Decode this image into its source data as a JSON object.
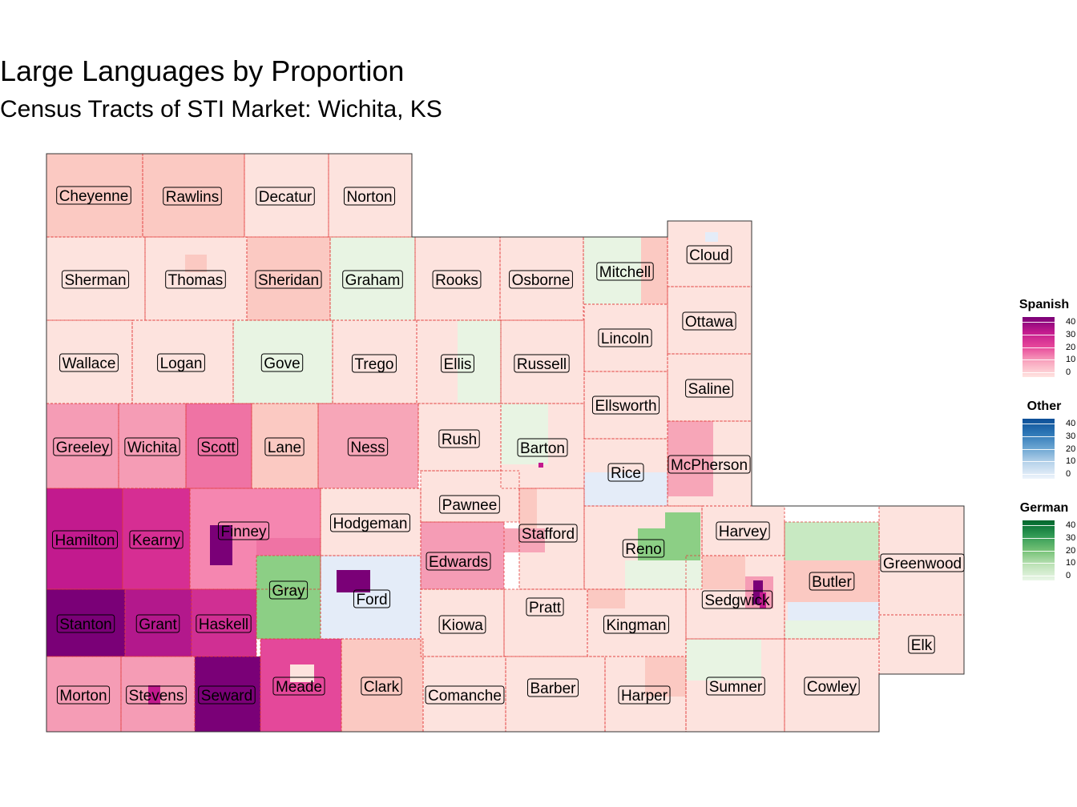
{
  "title": "Large Languages by Proportion",
  "subtitle": "Census Tracts of STI Market: Wichita, KS",
  "legend": [
    {
      "title": "Spanish",
      "ticks": [
        "40",
        "30",
        "20",
        "10",
        "0"
      ],
      "colors": [
        "#ffe4e0",
        "#f9a8c0",
        "#e7489a",
        "#c21a8e",
        "#7a0077"
      ]
    },
    {
      "title": "Other",
      "ticks": [
        "40",
        "30",
        "20",
        "10",
        "0"
      ],
      "colors": [
        "#eef4fb",
        "#bcd6ec",
        "#6ea7d3",
        "#2e78b7",
        "#0d4f97"
      ]
    },
    {
      "title": "German",
      "ticks": [
        "40",
        "30",
        "20",
        "10",
        "0"
      ],
      "colors": [
        "#eaf6e8",
        "#bfe3b9",
        "#74c175",
        "#2f9954",
        "#00672d"
      ]
    }
  ],
  "counties": [
    {
      "name": "Cheyenne",
      "fill": "#fbc9c2"
    },
    {
      "name": "Rawlins",
      "fill": "#fbc9c2"
    },
    {
      "name": "Decatur",
      "fill": "#fde3de"
    },
    {
      "name": "Norton",
      "fill": "#fde3de"
    },
    {
      "name": "Sherman",
      "fill": "#fde3de"
    },
    {
      "name": "Thomas",
      "fill": "#fde3de"
    },
    {
      "name": "Sheridan",
      "fill": "#fbc9c2"
    },
    {
      "name": "Graham",
      "fill": "#e8f4e3"
    },
    {
      "name": "Rooks",
      "fill": "#fde3de"
    },
    {
      "name": "Osborne",
      "fill": "#fde3de"
    },
    {
      "name": "Mitchell",
      "fill": "#fde3de"
    },
    {
      "name": "Cloud",
      "fill": "#fde3de"
    },
    {
      "name": "Wallace",
      "fill": "#fde3de"
    },
    {
      "name": "Logan",
      "fill": "#fde3de"
    },
    {
      "name": "Gove",
      "fill": "#e8f4e3"
    },
    {
      "name": "Trego",
      "fill": "#fde3de"
    },
    {
      "name": "Ellis",
      "fill": "#fde3de"
    },
    {
      "name": "Russell",
      "fill": "#fde3de"
    },
    {
      "name": "Lincoln",
      "fill": "#fde3de"
    },
    {
      "name": "Ottawa",
      "fill": "#fde3de"
    },
    {
      "name": "Saline",
      "fill": "#fde3de"
    },
    {
      "name": "Greeley",
      "fill": "#f59cb5"
    },
    {
      "name": "Wichita",
      "fill": "#f59cb5"
    },
    {
      "name": "Scott",
      "fill": "#ef73a4"
    },
    {
      "name": "Lane",
      "fill": "#fbc9c2"
    },
    {
      "name": "Ness",
      "fill": "#f7a6b8"
    },
    {
      "name": "Rush",
      "fill": "#fde3de"
    },
    {
      "name": "Barton",
      "fill": "#fde3de"
    },
    {
      "name": "Ellsworth",
      "fill": "#fde3de"
    },
    {
      "name": "Rice",
      "fill": "#fde3de"
    },
    {
      "name": "McPherson",
      "fill": "#fde3de"
    },
    {
      "name": "Hamilton",
      "fill": "#c21a8e"
    },
    {
      "name": "Kearny",
      "fill": "#d62e93"
    },
    {
      "name": "Finney",
      "fill": "#f586b0"
    },
    {
      "name": "Hodgeman",
      "fill": "#fde3de"
    },
    {
      "name": "Pawnee",
      "fill": "#fde3de"
    },
    {
      "name": "Stafford",
      "fill": "#fde3de"
    },
    {
      "name": "Reno",
      "fill": "#fde3de"
    },
    {
      "name": "Harvey",
      "fill": "#fde3de"
    },
    {
      "name": "Greenwood",
      "fill": "#fde3de"
    },
    {
      "name": "Gray",
      "fill": "#8ccf85"
    },
    {
      "name": "Ford",
      "fill": "#e4ecf8"
    },
    {
      "name": "Edwards",
      "fill": "#f59cb5"
    },
    {
      "name": "Butler",
      "fill": "#fde3de"
    },
    {
      "name": "Stanton",
      "fill": "#7a0077"
    },
    {
      "name": "Grant",
      "fill": "#b3188c"
    },
    {
      "name": "Haskell",
      "fill": "#d02f93"
    },
    {
      "name": "Kiowa",
      "fill": "#fde3de"
    },
    {
      "name": "Pratt",
      "fill": "#fde3de"
    },
    {
      "name": "Kingman",
      "fill": "#fde3de"
    },
    {
      "name": "Sedgwick",
      "fill": "#fde3de"
    },
    {
      "name": "Elk",
      "fill": "#fde3de"
    },
    {
      "name": "Morton",
      "fill": "#f59cb5"
    },
    {
      "name": "Stevens",
      "fill": "#f59cb5"
    },
    {
      "name": "Seward",
      "fill": "#7a0077"
    },
    {
      "name": "Meade",
      "fill": "#e4489a"
    },
    {
      "name": "Clark",
      "fill": "#fbc9c2"
    },
    {
      "name": "Comanche",
      "fill": "#fde3de"
    },
    {
      "name": "Barber",
      "fill": "#fde3de"
    },
    {
      "name": "Harper",
      "fill": "#fde3de"
    },
    {
      "name": "Sumner",
      "fill": "#fde3de"
    },
    {
      "name": "Cowley",
      "fill": "#fde3de"
    }
  ]
}
